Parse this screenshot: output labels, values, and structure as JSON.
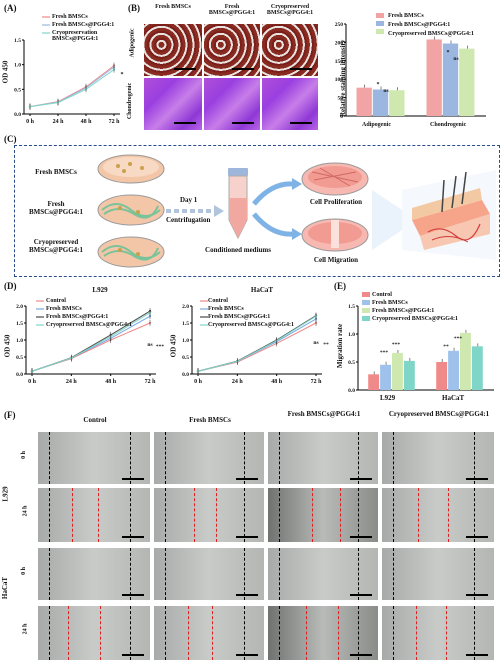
{
  "panels": {
    "A": "(A)",
    "B": "(B)",
    "C": "(C)",
    "D": "(D)",
    "E": "(E)",
    "F": "(F)"
  },
  "panelA": {
    "ylabel": "OD 450",
    "legend": [
      "Fresh BMSCs",
      "Fresh BMSCs@PGG4:1",
      "Cryopreservation BMSCs@PGG4:1"
    ],
    "xticks": [
      "0 h",
      "24 h",
      "48 h",
      "72 h"
    ],
    "yticks": [
      "0.0",
      "0.5",
      "1.0",
      "1.5"
    ]
  },
  "panelB": {
    "col_titles": [
      "Fresh BMSCs",
      "Fresh BMSCs@PGG4:1",
      "Cryopreserved BMSCs@PGG4:1"
    ],
    "row_titles": [
      "Adipogenic",
      "Chondrogenic"
    ],
    "ylabel": "Relative staining intensity",
    "legend": [
      "Fresh BMSCs",
      "Fresh BMSCs@PGG4:1",
      "Cryopreserved BMSCs@PGG4:1"
    ],
    "yticks": [
      "0",
      "50",
      "100",
      "150",
      "200",
      "250"
    ],
    "sig": [
      "*",
      "ns",
      "*",
      "ns"
    ]
  },
  "panelC": {
    "groups": [
      "Fresh BMSCs",
      "Fresh BMSCs@PGG4:1",
      "Cryopreserved BMSCs@PGG4:1"
    ],
    "step1": "Day 1",
    "step2": "Centrifugation",
    "medium": "Conditioned mediums",
    "out1": "Cell Proliferation",
    "out2": "Cell Migration"
  },
  "panelD": {
    "titles": [
      "L929",
      "HaCaT"
    ],
    "ylabel": "OD 450",
    "legend": [
      "Control",
      "Fresh BMSCs",
      "Fresh BMSCs@PGG4:1",
      "Cryopreserved BMSCs@PGG4:1"
    ],
    "xticks": [
      "0 h",
      "24 h",
      "48 h",
      "72 h"
    ],
    "yticks": [
      "0.0",
      "0.5",
      "1.0",
      "1.5",
      "2.0"
    ],
    "sig": [
      "ns",
      "***",
      "ns",
      "**"
    ]
  },
  "panelE": {
    "ylabel": "Migration rate",
    "legend": [
      "Control",
      "Fresh BMSCs",
      "Fresh BMSCs@PGG4:1",
      "Cryopreserved BMSCs@PGG4:1"
    ],
    "categories": [
      "L929",
      "HaCaT"
    ],
    "yticks": [
      "0.0",
      "0.5",
      "1.0",
      "1.5"
    ],
    "sig": [
      "***",
      "***",
      "**",
      "***"
    ]
  },
  "panelF": {
    "col_titles": [
      "Control",
      "Fresh BMSCs",
      "Fresh BMSCs@PGG4:1",
      "Cryopreserved BMSCs@PGG4:1"
    ],
    "groups": [
      "L929",
      "HaCaT"
    ],
    "row_times": [
      "0 h",
      "24 h"
    ]
  },
  "colors": {
    "fresh": "#f2a3a3",
    "fresh_pgg": "#9bb7e0",
    "cryo_pgg": "#cfe8b0",
    "control": "#f08a8a",
    "teal": "#7fd6c8",
    "red_line": "#e02020"
  },
  "chart_data": [
    {
      "type": "line",
      "panel": "A",
      "x": [
        "0 h",
        "24 h",
        "48 h",
        "72 h"
      ],
      "series": [
        {
          "name": "Fresh BMSCs",
          "values": [
            0.15,
            0.25,
            0.55,
            0.98
          ]
        },
        {
          "name": "Fresh BMSCs@PGG4:1",
          "values": [
            0.15,
            0.24,
            0.53,
            0.95
          ]
        },
        {
          "name": "Cryopreservation BMSCs@PGG4:1",
          "values": [
            0.15,
            0.23,
            0.5,
            0.9
          ]
        }
      ],
      "ylabel": "OD 450",
      "ylim": [
        0,
        1.5
      ]
    },
    {
      "type": "bar",
      "panel": "B",
      "categories": [
        "Adipogenic",
        "Chondrogenic"
      ],
      "series": [
        {
          "name": "Fresh BMSCs",
          "values": [
            77,
            208
          ]
        },
        {
          "name": "Fresh BMSCs@PGG4:1",
          "values": [
            72,
            197
          ]
        },
        {
          "name": "Cryopreserved BMSCs@PGG4:1",
          "values": [
            70,
            183
          ]
        }
      ],
      "ylabel": "Relative staining intensity",
      "ylim": [
        0,
        250
      ]
    },
    {
      "type": "line",
      "panel": "D-L929",
      "title": "L929",
      "x": [
        "0 h",
        "24 h",
        "48 h",
        "72 h"
      ],
      "series": [
        {
          "name": "Control",
          "values": [
            0.08,
            0.45,
            1.0,
            1.5
          ]
        },
        {
          "name": "Fresh BMSCs",
          "values": [
            0.08,
            0.47,
            1.05,
            1.7
          ]
        },
        {
          "name": "Fresh BMSCs@PGG4:1",
          "values": [
            0.08,
            0.48,
            1.15,
            1.85
          ]
        },
        {
          "name": "Cryopreserved BMSCs@PGG4:1",
          "values": [
            0.08,
            0.47,
            1.1,
            1.8
          ]
        }
      ],
      "ylabel": "OD 450",
      "ylim": [
        0,
        2.0
      ]
    },
    {
      "type": "line",
      "panel": "D-HaCaT",
      "title": "HaCaT",
      "x": [
        "0 h",
        "24 h",
        "48 h",
        "72 h"
      ],
      "series": [
        {
          "name": "Control",
          "values": [
            0.08,
            0.35,
            0.9,
            1.5
          ]
        },
        {
          "name": "Fresh BMSCs",
          "values": [
            0.08,
            0.37,
            0.95,
            1.62
          ]
        },
        {
          "name": "Fresh BMSCs@PGG4:1",
          "values": [
            0.08,
            0.38,
            1.0,
            1.72
          ]
        },
        {
          "name": "Cryopreserved BMSCs@PGG4:1",
          "values": [
            0.08,
            0.37,
            0.98,
            1.7
          ]
        }
      ],
      "ylabel": "OD 450",
      "ylim": [
        0,
        2.0
      ]
    },
    {
      "type": "bar",
      "panel": "E",
      "categories": [
        "L929",
        "HaCaT"
      ],
      "series": [
        {
          "name": "Control",
          "values": [
            0.28,
            0.5
          ]
        },
        {
          "name": "Fresh BMSCs",
          "values": [
            0.45,
            0.7
          ]
        },
        {
          "name": "Fresh BMSCs@PGG4:1",
          "values": [
            0.66,
            1.02
          ]
        },
        {
          "name": "Cryopreserved BMSCs@PGG4:1",
          "values": [
            0.52,
            0.78
          ]
        }
      ],
      "ylabel": "Migration rate",
      "ylim": [
        0,
        1.5
      ]
    }
  ]
}
